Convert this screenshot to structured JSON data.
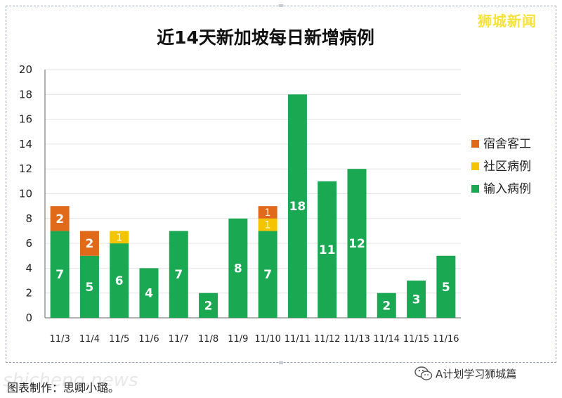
{
  "brand": "狮城新闻",
  "caption": "图表制作：思卿小璐。",
  "watermark": "shicheng.news",
  "wechat_account": "A计划学习狮城篇",
  "colors": {
    "dorm": "#e06a1a",
    "community": "#f5c400",
    "imported": "#1aa852",
    "grid": "#e4e4e4",
    "axis": "#666666"
  },
  "chart_data": {
    "type": "bar",
    "stacked": true,
    "title": "近14天新加坡每日新增病例",
    "xlabel": "",
    "ylabel": "",
    "ylim": [
      0,
      20
    ],
    "yticks": [
      0,
      2,
      4,
      6,
      8,
      10,
      12,
      14,
      16,
      18,
      20
    ],
    "grid": true,
    "legend_position": "right",
    "categories": [
      "11/3",
      "11/4",
      "11/5",
      "11/6",
      "11/7",
      "11/8",
      "11/9",
      "11/10",
      "11/11",
      "11/12",
      "11/13",
      "11/14",
      "11/15",
      "11/16"
    ],
    "series": [
      {
        "name": "输入病例",
        "values": [
          7,
          5,
          6,
          4,
          7,
          2,
          8,
          7,
          18,
          11,
          12,
          2,
          3,
          5
        ]
      },
      {
        "name": "社区病例",
        "values": [
          0,
          0,
          1,
          0,
          0,
          0,
          0,
          1,
          0,
          0,
          0,
          0,
          0,
          0
        ]
      },
      {
        "name": "宿舍客工",
        "values": [
          2,
          2,
          0,
          0,
          0,
          0,
          0,
          1,
          0,
          0,
          0,
          0,
          0,
          0
        ]
      }
    ],
    "legend_order": [
      "宿舍客工",
      "社区病例",
      "输入病例"
    ]
  }
}
